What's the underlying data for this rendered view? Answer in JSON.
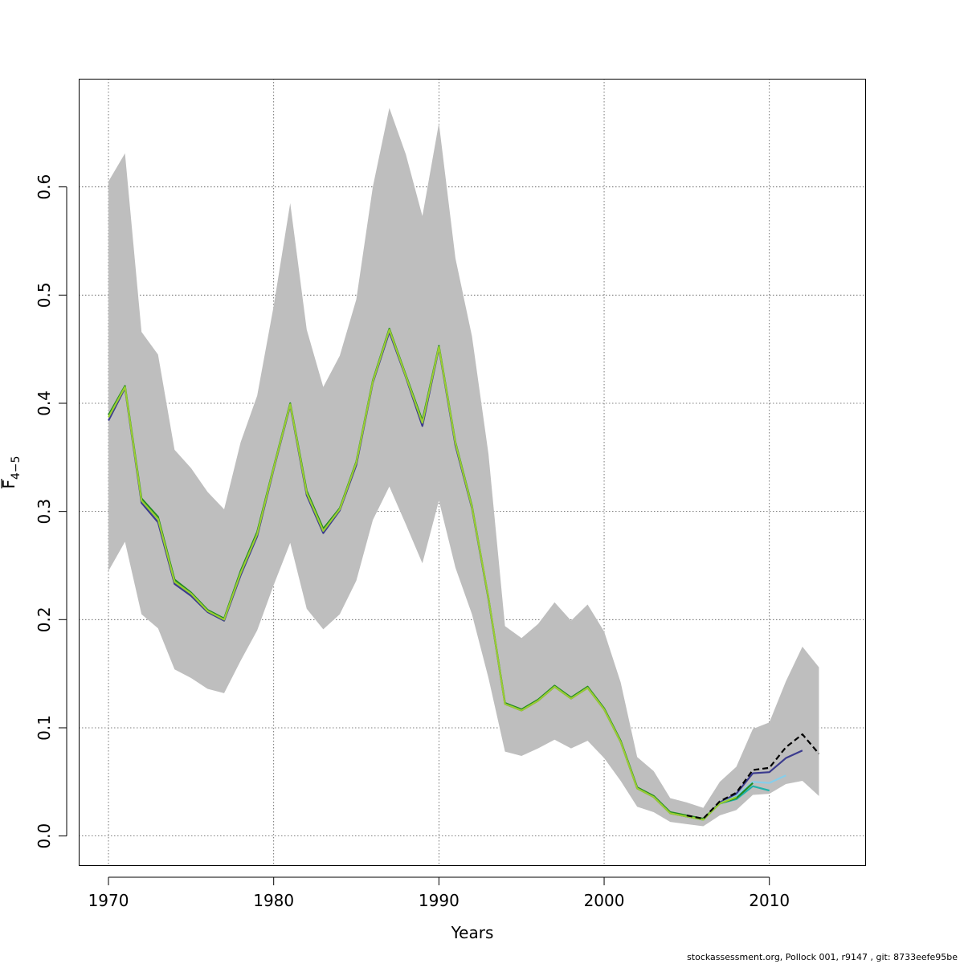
{
  "chart_data": {
    "type": "line",
    "xlabel": "Years",
    "ylabel_main": "F",
    "ylabel_sub": "4−5",
    "xlim": [
      1968.2,
      2015.8
    ],
    "ylim": [
      -0.027,
      0.7
    ],
    "x_ticks": [
      1970,
      1980,
      1990,
      2000,
      2010
    ],
    "y_ticks": [
      0.0,
      0.1,
      0.2,
      0.3,
      0.4,
      0.5,
      0.6
    ],
    "y_tick_labels": [
      "0.0",
      "0.1",
      "0.2",
      "0.3",
      "0.4",
      "0.5",
      "0.6"
    ],
    "grid": true,
    "band": {
      "color": "#bebebe",
      "x": [
        1970,
        1971,
        1972,
        1973,
        1974,
        1975,
        1976,
        1977,
        1978,
        1979,
        1980,
        1981,
        1982,
        1983,
        1984,
        1985,
        1986,
        1987,
        1988,
        1989,
        1990,
        1991,
        1992,
        1993,
        1994,
        1995,
        1996,
        1997,
        1998,
        1999,
        2000,
        2001,
        2002,
        2003,
        2004,
        2005,
        2006,
        2007,
        2008,
        2009,
        2010,
        2011,
        2012,
        2013
      ],
      "lower": [
        0.245,
        0.272,
        0.205,
        0.192,
        0.154,
        0.146,
        0.136,
        0.132,
        0.162,
        0.19,
        0.232,
        0.271,
        0.21,
        0.191,
        0.205,
        0.236,
        0.292,
        0.323,
        0.288,
        0.252,
        0.31,
        0.248,
        0.205,
        0.146,
        0.078,
        0.074,
        0.081,
        0.089,
        0.081,
        0.088,
        0.072,
        0.051,
        0.027,
        0.022,
        0.013,
        0.011,
        0.009,
        0.019,
        0.024,
        0.038,
        0.039,
        0.048,
        0.051,
        0.037
      ],
      "upper": [
        0.605,
        0.631,
        0.466,
        0.445,
        0.357,
        0.34,
        0.318,
        0.302,
        0.364,
        0.407,
        0.49,
        0.585,
        0.468,
        0.415,
        0.444,
        0.496,
        0.6,
        0.673,
        0.63,
        0.573,
        0.659,
        0.534,
        0.462,
        0.353,
        0.194,
        0.183,
        0.196,
        0.216,
        0.199,
        0.214,
        0.189,
        0.142,
        0.073,
        0.06,
        0.035,
        0.031,
        0.026,
        0.05,
        0.064,
        0.099,
        0.105,
        0.143,
        0.175,
        0.156
      ]
    },
    "series": [
      {
        "color": "#3b3b8e",
        "dash": false,
        "x": [
          1970,
          1971,
          1972,
          1973,
          1974,
          1975,
          1976,
          1977,
          1978,
          1979,
          1980,
          1981,
          1982,
          1983,
          1984,
          1985,
          1986,
          1987,
          1988,
          1989,
          1990,
          1991,
          1992,
          1993,
          1994,
          1995,
          1996,
          1997,
          1998,
          1999,
          2000,
          2001,
          2002,
          2003,
          2004,
          2005,
          2006,
          2007,
          2008,
          2009,
          2010,
          2011,
          2012
        ],
        "y": [
          0.384,
          0.414,
          0.308,
          0.29,
          0.233,
          0.222,
          0.207,
          0.199,
          0.241,
          0.277,
          0.339,
          0.398,
          0.315,
          0.28,
          0.301,
          0.343,
          0.419,
          0.466,
          0.424,
          0.379,
          0.451,
          0.361,
          0.303,
          0.219,
          0.122,
          0.116,
          0.125,
          0.138,
          0.127,
          0.137,
          0.117,
          0.087,
          0.044,
          0.036,
          0.021,
          0.018,
          0.015,
          0.031,
          0.039,
          0.058,
          0.059,
          0.072,
          0.079
        ]
      },
      {
        "color": "#87ceeb",
        "dash": false,
        "x": [
          2005,
          2006,
          2007,
          2008,
          2009,
          2010,
          2011
        ],
        "y": [
          0.018,
          0.015,
          0.03,
          0.037,
          0.05,
          0.049,
          0.056
        ]
      },
      {
        "color": "#20b2aa",
        "dash": false,
        "x": [
          2005,
          2006,
          2007,
          2008,
          2009,
          2010
        ],
        "y": [
          0.018,
          0.015,
          0.03,
          0.034,
          0.046,
          0.042
        ]
      },
      {
        "color": "#228b22",
        "dash": false,
        "x": [
          1970,
          1971,
          1972,
          1973,
          1974,
          1975,
          1976,
          1977,
          1978,
          1979,
          1980,
          1981,
          1982,
          1983,
          1984,
          1985,
          1986,
          1987,
          1988,
          1989,
          1990,
          1991,
          1992,
          1993,
          1994,
          1995,
          1996,
          1997,
          1998,
          1999,
          2000,
          2001,
          2002,
          2003,
          2004,
          2005,
          2006,
          2007,
          2008,
          2009
        ],
        "y": [
          0.389,
          0.416,
          0.312,
          0.295,
          0.237,
          0.225,
          0.209,
          0.201,
          0.245,
          0.281,
          0.341,
          0.4,
          0.319,
          0.284,
          0.303,
          0.346,
          0.421,
          0.469,
          0.426,
          0.384,
          0.453,
          0.364,
          0.305,
          0.22,
          0.123,
          0.117,
          0.126,
          0.139,
          0.128,
          0.138,
          0.118,
          0.088,
          0.045,
          0.037,
          0.022,
          0.019,
          0.016,
          0.03,
          0.035,
          0.049
        ]
      },
      {
        "color": "#9acd32",
        "dash": false,
        "x": [
          1970,
          1971,
          1972,
          1973,
          1974,
          1975,
          1976,
          1977,
          1978,
          1979,
          1980,
          1981,
          1982,
          1983,
          1984,
          1985,
          1986,
          1987,
          1988,
          1989,
          1990,
          1991,
          1992,
          1993,
          1994,
          1995,
          1996,
          1997,
          1998,
          1999,
          2000,
          2001,
          2002,
          2003,
          2004,
          2005,
          2006,
          2007,
          2008
        ],
        "y": [
          0.387,
          0.415,
          0.31,
          0.293,
          0.235,
          0.224,
          0.208,
          0.2,
          0.243,
          0.279,
          0.34,
          0.399,
          0.317,
          0.282,
          0.302,
          0.345,
          0.42,
          0.468,
          0.425,
          0.382,
          0.452,
          0.363,
          0.304,
          0.22,
          0.122,
          0.116,
          0.125,
          0.138,
          0.127,
          0.137,
          0.117,
          0.087,
          0.044,
          0.036,
          0.021,
          0.018,
          0.015,
          0.03,
          0.036
        ]
      },
      {
        "color": "#000000",
        "dash": true,
        "x": [
          2005,
          2006,
          2007,
          2008,
          2009,
          2010,
          2011,
          2012,
          2013
        ],
        "y": [
          0.019,
          0.016,
          0.032,
          0.04,
          0.061,
          0.063,
          0.082,
          0.094,
          0.076
        ]
      }
    ]
  },
  "footer": "stockassessment.org, Pollock  001, r9147 , git: 8733eefe95be"
}
